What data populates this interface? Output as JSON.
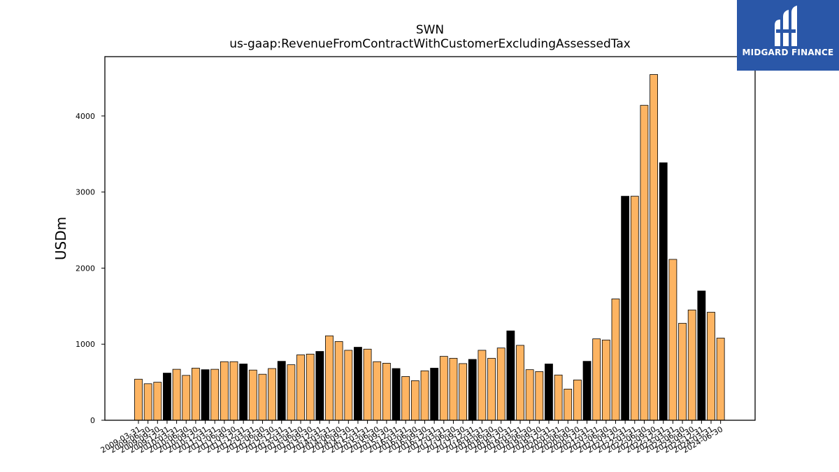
{
  "chart_data": {
    "type": "bar",
    "title": "SWN",
    "subtitle": "us-gaap:RevenueFromContractWithCustomerExcludingAssessedTax",
    "ylabel": "USDm",
    "ylim": [
      0,
      4780
    ],
    "yticks": [
      0,
      1000,
      2000,
      3000,
      4000
    ],
    "grid": false,
    "colors": {
      "quarter": "#fdb462",
      "annual": "#000000",
      "edge": "#000000"
    },
    "categories": [
      "2009-03-31",
      "2009-06-30",
      "2009-09-30",
      "2009-12-31",
      "2010-03-31",
      "2010-06-30",
      "2010-09-30",
      "2010-12-31",
      "2011-03-31",
      "2011-06-30",
      "2011-09-30",
      "2011-12-31",
      "2012-03-31",
      "2012-06-30",
      "2012-09-30",
      "2012-12-31",
      "2013-03-31",
      "2013-06-30",
      "2013-09-30",
      "2013-12-31",
      "2014-03-31",
      "2014-06-30",
      "2014-09-30",
      "2014-12-31",
      "2015-03-31",
      "2015-06-30",
      "2015-09-30",
      "2015-12-31",
      "2016-03-31",
      "2016-06-30",
      "2016-09-30",
      "2016-12-31",
      "2017-03-31",
      "2017-06-30",
      "2017-09-30",
      "2017-12-31",
      "2018-03-31",
      "2018-06-30",
      "2018-09-30",
      "2018-12-31",
      "2019-03-31",
      "2019-06-30",
      "2019-09-30",
      "2019-12-31",
      "2020-03-31",
      "2020-06-30",
      "2020-09-30",
      "2020-12-31",
      "2021-03-31",
      "2021-06-30",
      "2021-09-30",
      "2021-12-31",
      "2022-03-31",
      "2022-06-30",
      "2022-09-30",
      "2022-12-31",
      "2023-03-31",
      "2023-06-30",
      "2023-09-30",
      "2023-12-31",
      "2024-03-31",
      "2024-06-30"
    ],
    "values": [
      540,
      480,
      500,
      620,
      670,
      590,
      685,
      665,
      670,
      770,
      770,
      740,
      660,
      605,
      680,
      775,
      730,
      860,
      870,
      905,
      1110,
      1035,
      920,
      960,
      935,
      770,
      750,
      680,
      575,
      520,
      650,
      685,
      840,
      815,
      745,
      800,
      920,
      815,
      950,
      1175,
      985,
      665,
      640,
      740,
      595,
      410,
      530,
      775,
      1070,
      1055,
      1595,
      2945,
      2945,
      4140,
      4545,
      3385,
      2115,
      1275,
      1450,
      1700,
      1420,
      1080
    ],
    "annual_flags": [
      0,
      0,
      0,
      1,
      0,
      0,
      0,
      1,
      0,
      0,
      0,
      1,
      0,
      0,
      0,
      1,
      0,
      0,
      0,
      1,
      0,
      0,
      0,
      1,
      0,
      0,
      0,
      1,
      0,
      0,
      0,
      1,
      0,
      0,
      0,
      1,
      0,
      0,
      0,
      1,
      0,
      0,
      0,
      1,
      0,
      0,
      0,
      1,
      0,
      0,
      0,
      1,
      0,
      0,
      0,
      1,
      0,
      0,
      0,
      1,
      0,
      0
    ]
  },
  "logo": {
    "text": "MIDGARD FINANCE",
    "icon": "midgard-logo-mark"
  }
}
